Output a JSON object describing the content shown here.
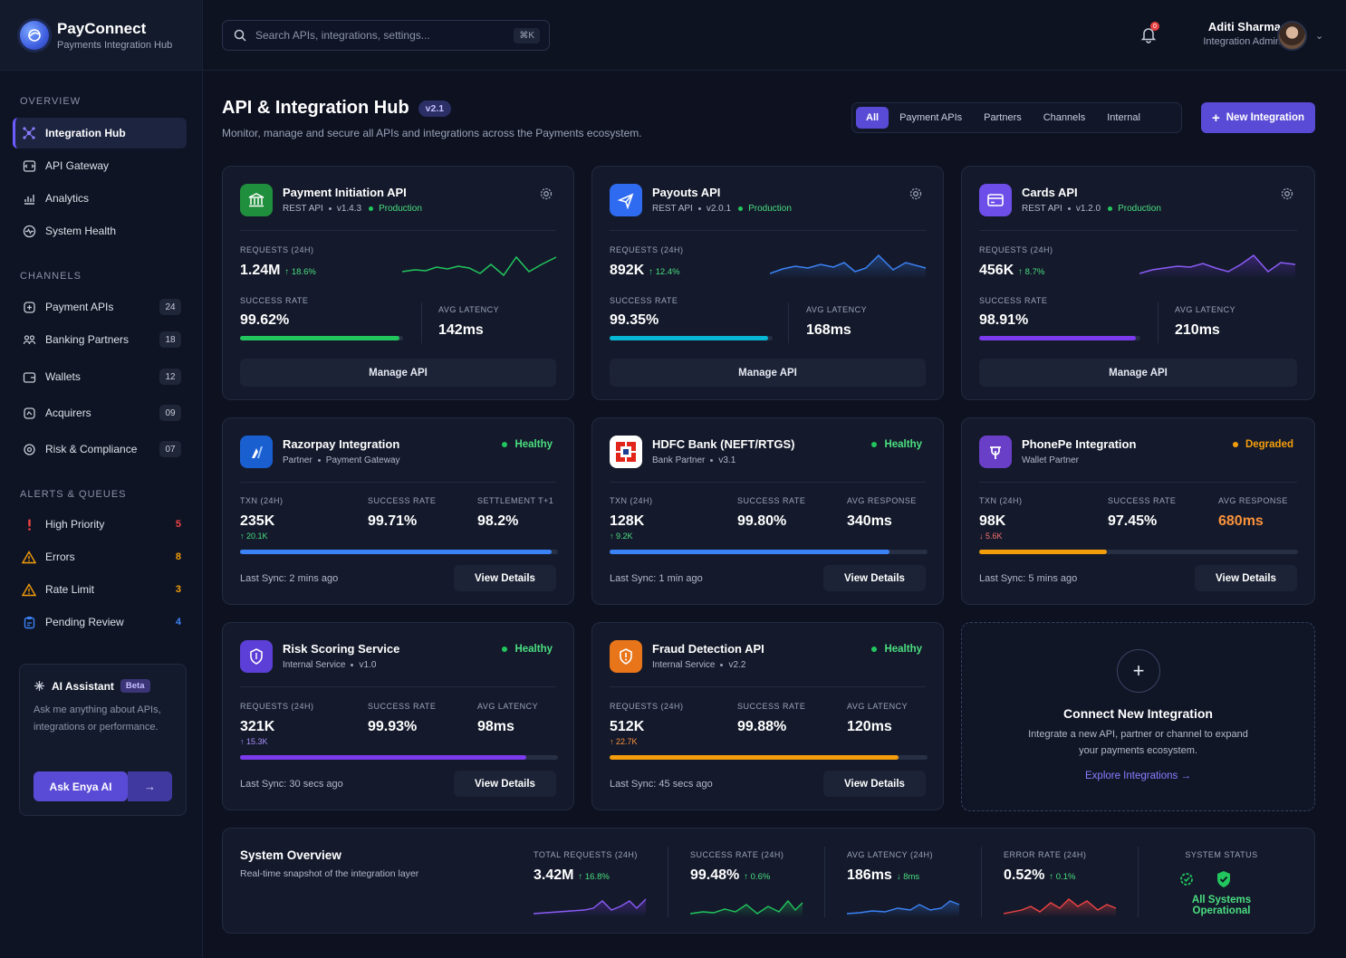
{
  "brand": {
    "name": "PayConnect",
    "subtitle": "Payments Integration Hub"
  },
  "search": {
    "placeholder": "Search APIs, integrations, settings...",
    "shortcut": "⌘K"
  },
  "notifications": {
    "count": "0"
  },
  "user": {
    "name": "Aditi Sharma",
    "role": "Integration Admin"
  },
  "sidebar": {
    "overview_label": "Overview",
    "overview_items": [
      {
        "label": "Integration Hub",
        "icon": "hub-icon",
        "active": true
      },
      {
        "label": "API Gateway",
        "icon": "gateway-icon"
      },
      {
        "label": "Analytics",
        "icon": "analytics-icon"
      },
      {
        "label": "System Health",
        "icon": "health-icon"
      }
    ],
    "channels_label": "Channels",
    "channels": [
      {
        "label": "Payment APIs",
        "count": "24"
      },
      {
        "label": "Banking Partners",
        "count": "18"
      },
      {
        "label": "Wallets",
        "count": "12"
      },
      {
        "label": "Acquirers",
        "count": "09"
      },
      {
        "label": "Risk & Compliance",
        "count": "07"
      }
    ],
    "alerts_label": "Alerts & Queues",
    "alerts": [
      {
        "label": "High Priority",
        "count": "5",
        "color": "#ef4444"
      },
      {
        "label": "Errors",
        "count": "8",
        "color": "#f59e0b"
      },
      {
        "label": "Rate Limit",
        "count": "3",
        "color": "#f59e0b"
      },
      {
        "label": "Pending Review",
        "count": "4",
        "color": "#3b82f6"
      }
    ],
    "assistant": {
      "title": "AI Assistant",
      "badge": "Beta",
      "description": "Ask me anything about APIs, integrations or performance.",
      "button": "Ask Enya AI"
    }
  },
  "header": {
    "title": "API & Integration Hub",
    "version": "v2.1",
    "subtitle": "Monitor, manage and secure all APIs and integrations across the Payments ecosystem.",
    "filters": [
      "All",
      "Payment APIs",
      "Partners",
      "Channels",
      "Internal"
    ],
    "new_button": "New Integration"
  },
  "api_cards": [
    {
      "title": "Payment Initiation API",
      "type": "REST API",
      "version": "v1.4.3",
      "env": "Production",
      "requests_label": "Requests (24H)",
      "requests": "1.24M",
      "requests_delta": "18.6%",
      "success_label": "Success Rate",
      "success": "99.62%",
      "success_fill": 0.98,
      "latency_label": "Avg Latency",
      "latency": "142ms",
      "button": "Manage API",
      "accent": "#22c55e"
    },
    {
      "title": "Payouts API",
      "type": "REST API",
      "version": "v2.0.1",
      "env": "Production",
      "requests_label": "Requests (24H)",
      "requests": "892K",
      "requests_delta": "12.4%",
      "success_label": "Success Rate",
      "success": "99.35%",
      "success_fill": 0.97,
      "latency_label": "Avg Latency",
      "latency": "168ms",
      "button": "Manage API",
      "accent": "#06b6d4"
    },
    {
      "title": "Cards API",
      "type": "REST API",
      "version": "v1.2.0",
      "env": "Production",
      "requests_label": "Requests (24H)",
      "requests": "456K",
      "requests_delta": "8.7%",
      "success_label": "Success Rate",
      "success": "98.91%",
      "success_fill": 0.97,
      "latency_label": "Avg Latency",
      "latency": "210ms",
      "button": "Manage API",
      "accent": "#7c3aed"
    }
  ],
  "integration_cards": [
    {
      "title": "Razorpay Integration",
      "sub1": "Partner",
      "sub2": "Payment Gateway",
      "status": "Healthy",
      "status_color": "#22c55e",
      "m1_label": "TXN (24H)",
      "m1": "235K",
      "m1_delta": "20.1K",
      "m1_dir": "up",
      "m2_label": "Success Rate",
      "m2": "99.71%",
      "m3_label": "Settlement T+1",
      "m3": "98.2%",
      "fill": 0.98,
      "bar_color": "#3b82f6",
      "sync": "Last Sync: 2 mins ago",
      "button": "View Details"
    },
    {
      "title": "HDFC Bank (NEFT/RTGS)",
      "sub1": "Bank Partner",
      "sub2": "v3.1",
      "status": "Healthy",
      "status_color": "#22c55e",
      "m1_label": "TXN (24H)",
      "m1": "128K",
      "m1_delta": "9.2K",
      "m1_dir": "up",
      "m2_label": "Success Rate",
      "m2": "99.80%",
      "m3_label": "Avg Response",
      "m3": "340ms",
      "fill": 0.88,
      "bar_color": "#3b82f6",
      "sync": "Last Sync: 1 min ago",
      "button": "View Details"
    },
    {
      "title": "PhonePe Integration",
      "sub1": "Wallet Partner",
      "sub2": "",
      "status": "Degraded",
      "status_color": "#f59e0b",
      "m1_label": "TXN (24H)",
      "m1": "98K",
      "m1_delta": "5.6K",
      "m1_dir": "down",
      "m2_label": "Success Rate",
      "m2": "97.45%",
      "m3_label": "Avg Response",
      "m3": "680ms",
      "fill": 0.4,
      "bar_color": "#f59e0b",
      "sync": "Last Sync: 5 mins ago",
      "button": "View Details"
    },
    {
      "title": "Risk Scoring Service",
      "sub1": "Internal Service",
      "sub2": "v1.0",
      "status": "Healthy",
      "status_color": "#22c55e",
      "m1_label": "Requests (24H)",
      "m1": "321K",
      "m1_delta": "15.3K",
      "m1_dir": "up",
      "m2_label": "Success Rate",
      "m2": "99.93%",
      "m3_label": "Avg Latency",
      "m3": "98ms",
      "fill": 0.9,
      "bar_color": "#7c3aed",
      "sync": "Last Sync: 30 secs ago",
      "button": "View Details"
    },
    {
      "title": "Fraud Detection API",
      "sub1": "Internal Service",
      "sub2": "v2.2",
      "status": "Healthy",
      "status_color": "#22c55e",
      "m1_label": "Requests (24H)",
      "m1": "512K",
      "m1_delta": "22.7K",
      "m1_dir": "up",
      "m2_label": "Success Rate",
      "m2": "99.88%",
      "m3_label": "Avg Latency",
      "m3": "120ms",
      "fill": 0.91,
      "bar_color": "#f59e0b",
      "sync": "Last Sync: 45 secs ago",
      "button": "View Details"
    }
  ],
  "connect": {
    "title": "Connect New Integration",
    "description": "Integrate a new API, partner or channel to expand your payments ecosystem.",
    "link": "Explore Integrations →"
  },
  "overview": {
    "title": "System Overview",
    "subtitle": "Real-time snapshot of the integration layer",
    "stats": [
      {
        "label": "Total Requests (24H)",
        "value": "3.42M",
        "delta": "16.8%",
        "dir": "up",
        "color": "#7c3aed"
      },
      {
        "label": "Success Rate (24H)",
        "value": "99.48%",
        "delta": "0.6%",
        "dir": "up",
        "color": "#22c55e"
      },
      {
        "label": "Avg Latency (24H)",
        "value": "186ms",
        "delta": "8ms",
        "dir": "down-good",
        "color": "#3b82f6"
      },
      {
        "label": "Error Rate (24H)",
        "value": "0.52%",
        "delta": "0.1%",
        "dir": "up",
        "color": "#ef4444"
      }
    ],
    "status_label": "System Status",
    "status_text": "All Systems Operational"
  }
}
